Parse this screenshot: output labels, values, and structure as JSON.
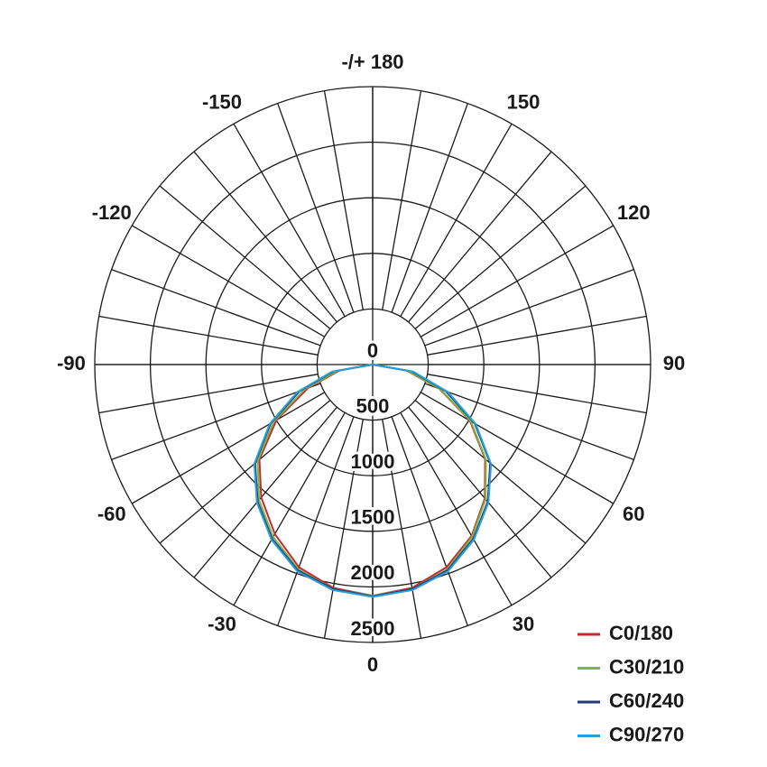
{
  "chart_data": {
    "type": "polar",
    "theta": [
      -90,
      -80,
      -70,
      -60,
      -50,
      -40,
      -30,
      -20,
      -10,
      0,
      10,
      20,
      30,
      40,
      50,
      60,
      70,
      80,
      90
    ],
    "series": [
      {
        "name": "C0/180",
        "color": "#c62a2f",
        "values": [
          0,
          300,
          620,
          1000,
          1330,
          1560,
          1760,
          1940,
          2040,
          2080,
          2040,
          1940,
          1780,
          1570,
          1320,
          1010,
          640,
          310,
          0
        ]
      },
      {
        "name": "C30/210",
        "color": "#7cb648",
        "values": [
          0,
          320,
          650,
          1030,
          1350,
          1590,
          1790,
          1960,
          2050,
          2080,
          2050,
          1960,
          1790,
          1580,
          1330,
          1020,
          650,
          320,
          0
        ]
      },
      {
        "name": "C60/240",
        "color": "#1f3a7a",
        "values": [
          0,
          360,
          700,
          1060,
          1380,
          1610,
          1810,
          1970,
          2050,
          2085,
          2050,
          1970,
          1810,
          1610,
          1380,
          1060,
          700,
          360,
          0
        ]
      },
      {
        "name": "C90/270",
        "color": "#2a9fd8",
        "values": [
          0,
          370,
          720,
          1070,
          1390,
          1620,
          1820,
          1980,
          2060,
          2090,
          2060,
          1980,
          1820,
          1620,
          1390,
          1070,
          720,
          370,
          0
        ]
      }
    ],
    "rlim": [
      0,
      2500
    ],
    "rticks": [
      0,
      500,
      1000,
      1500,
      2000,
      2500
    ],
    "thetaticks": [
      0,
      30,
      60,
      90,
      120,
      150,
      {
        "value": 180,
        "label": "-/+ 180"
      },
      -150,
      -120,
      -90,
      -60,
      -30
    ],
    "legend": "lower right"
  }
}
